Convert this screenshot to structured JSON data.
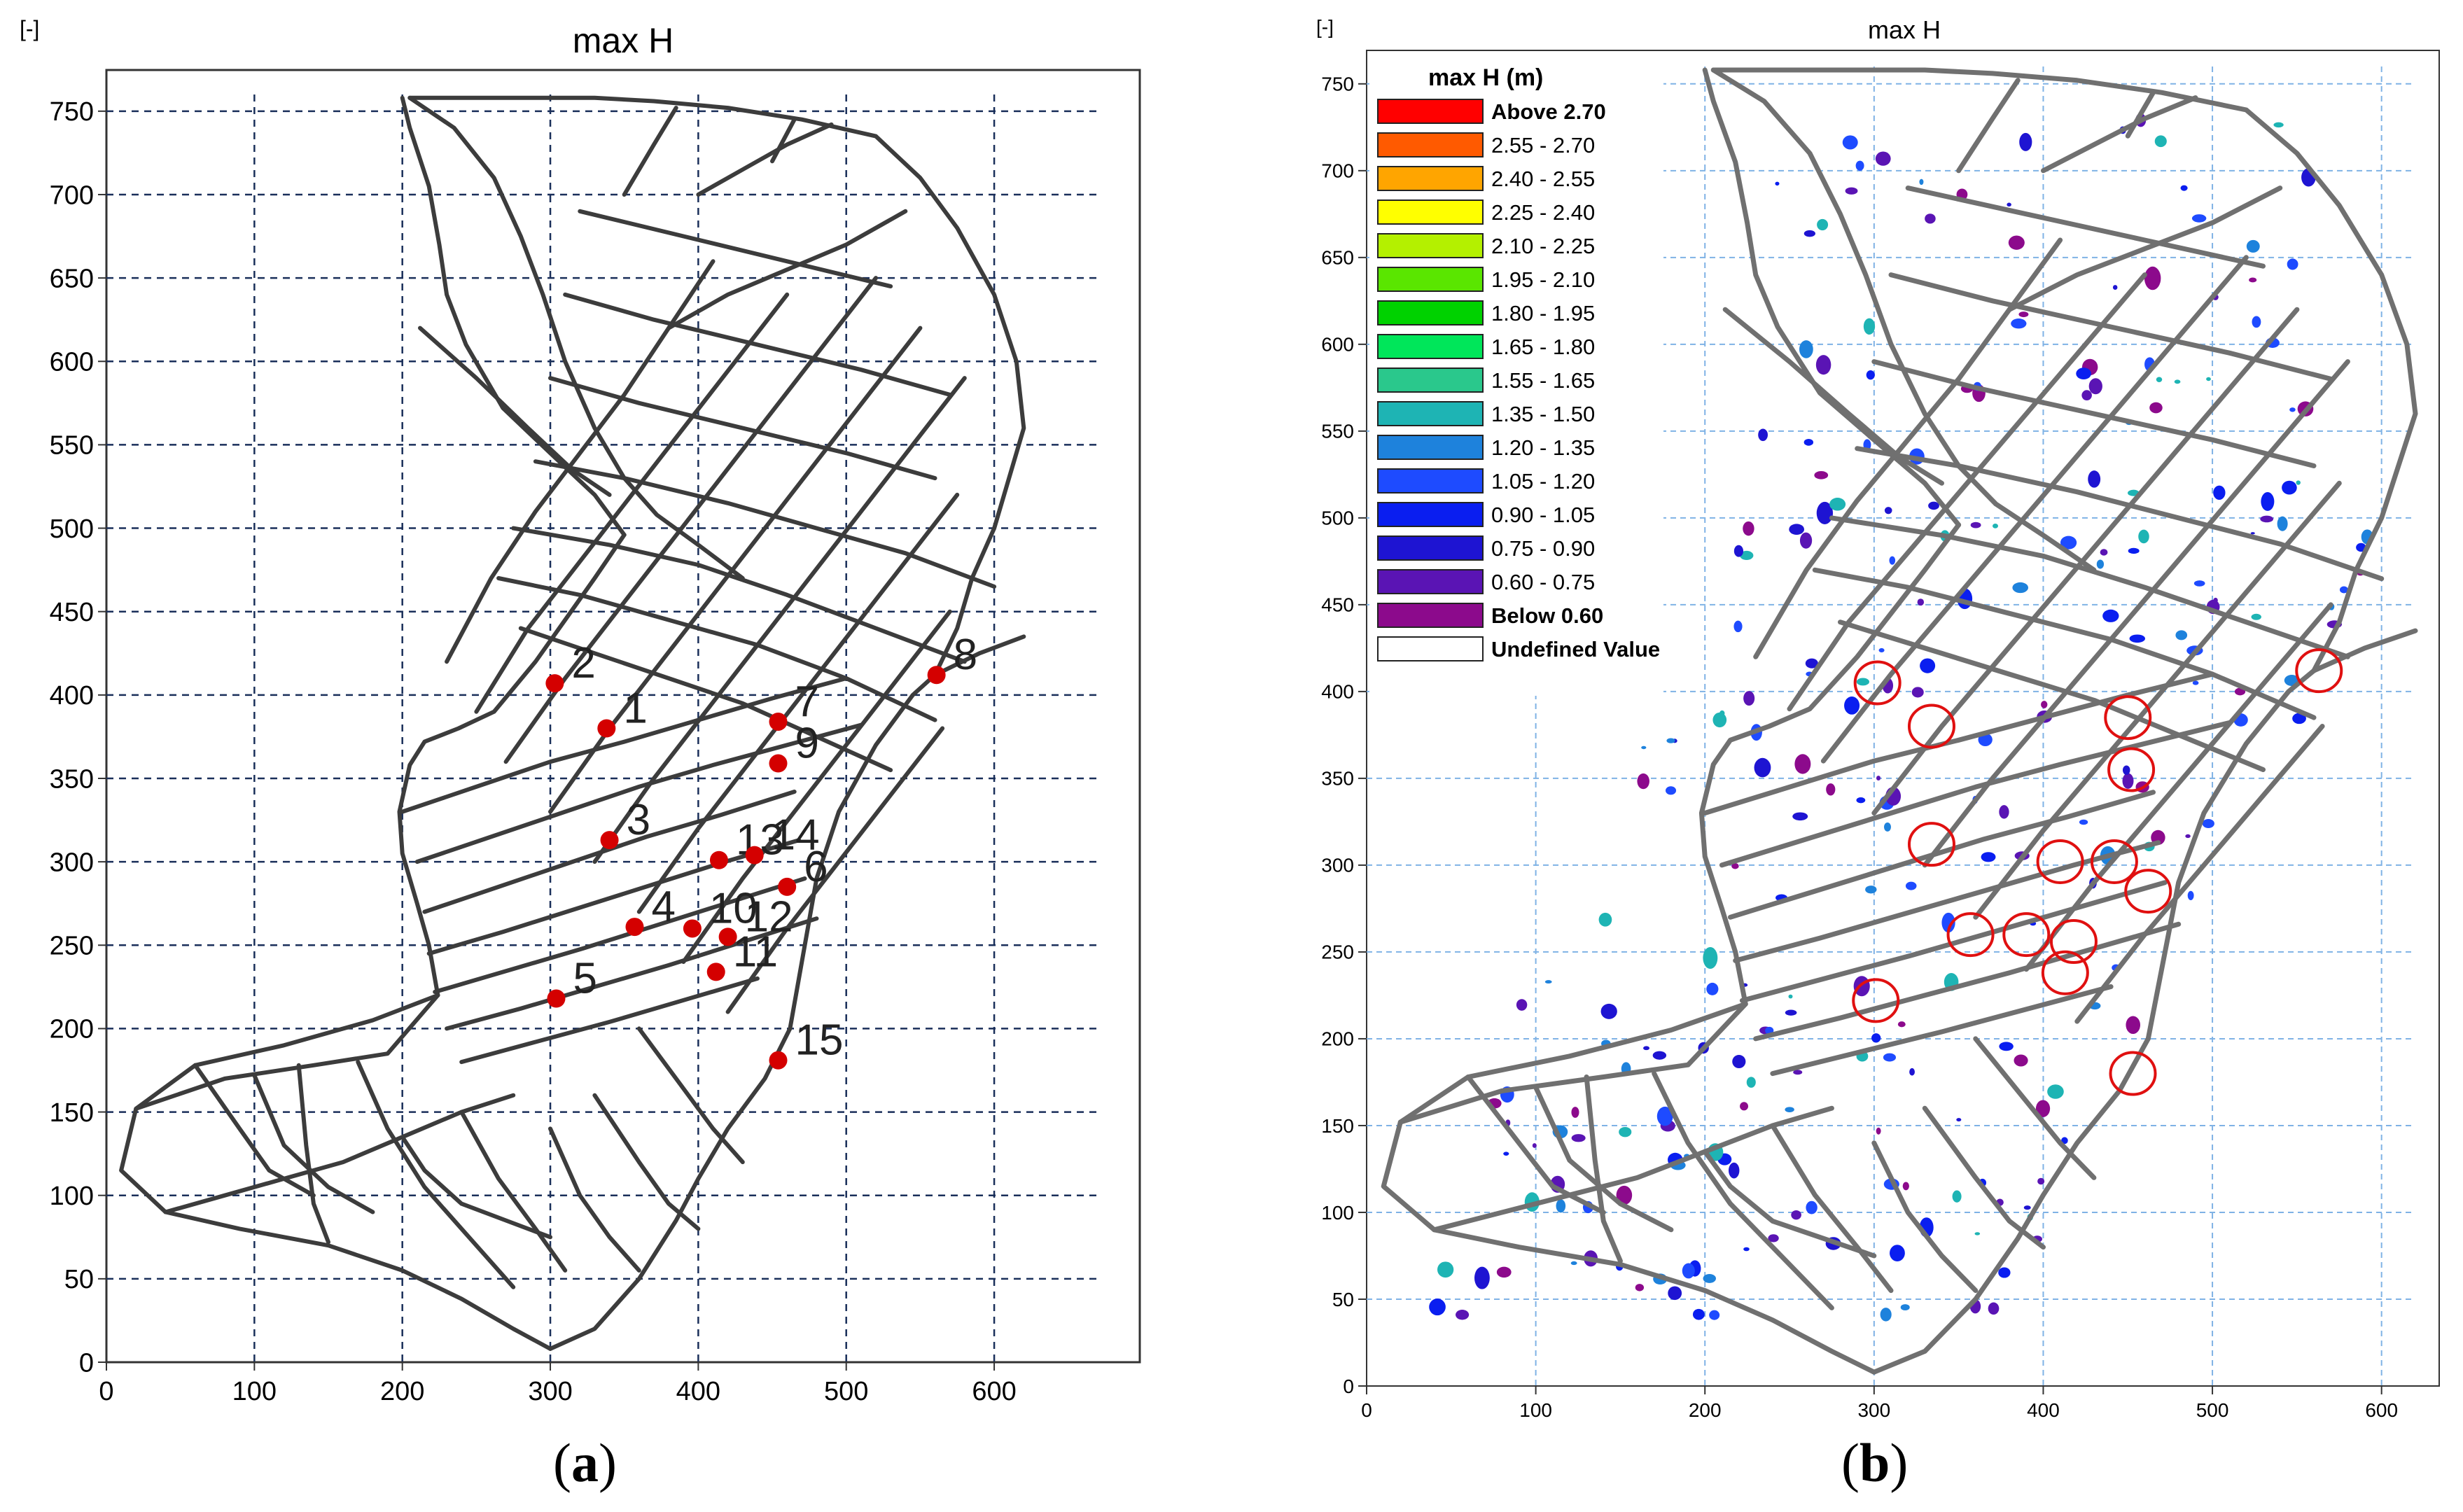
{
  "panel_a": {
    "unit_label": "[-]",
    "title": "max H",
    "caption_open": "(",
    "caption_letter": "a",
    "caption_close": ")",
    "x_ticks": [
      "0",
      "100",
      "200",
      "300",
      "400",
      "500",
      "600"
    ],
    "y_ticks": [
      "0",
      "50",
      "100",
      "150",
      "200",
      "250",
      "300",
      "350",
      "400",
      "450",
      "500",
      "550",
      "600",
      "650",
      "700",
      "750"
    ],
    "points": [
      {
        "label": "1",
        "x": 338,
        "y": 380
      },
      {
        "label": "2",
        "x": 303,
        "y": 407
      },
      {
        "label": "3",
        "x": 340,
        "y": 313
      },
      {
        "label": "4",
        "x": 357,
        "y": 261
      },
      {
        "label": "5",
        "x": 304,
        "y": 218
      },
      {
        "label": "6",
        "x": 460,
        "y": 285
      },
      {
        "label": "7",
        "x": 454,
        "y": 384
      },
      {
        "label": "8",
        "x": 561,
        "y": 412
      },
      {
        "label": "9",
        "x": 454,
        "y": 359
      },
      {
        "label": "10",
        "x": 396,
        "y": 260
      },
      {
        "label": "11",
        "x": 412,
        "y": 234
      },
      {
        "label": "12",
        "x": 420,
        "y": 255
      },
      {
        "label": "13",
        "x": 414,
        "y": 301
      },
      {
        "label": "14",
        "x": 438,
        "y": 304
      },
      {
        "label": "15",
        "x": 454,
        "y": 181
      }
    ],
    "point_color": "#d40000"
  },
  "panel_b": {
    "unit_label": "[-]",
    "title": "max H",
    "caption_open": "(",
    "caption_letter": "b",
    "caption_close": ")",
    "x_ticks": [
      "0",
      "100",
      "200",
      "300",
      "400",
      "500",
      "600"
    ],
    "y_ticks": [
      "0",
      "50",
      "100",
      "150",
      "200",
      "250",
      "300",
      "350",
      "400",
      "450",
      "500",
      "550",
      "600",
      "650",
      "700",
      "750"
    ],
    "legend_title": "max H (m)",
    "legend": [
      {
        "label": "Above 2.70",
        "color": "#ff0000"
      },
      {
        "label": "2.55 - 2.70",
        "color": "#ff5a00"
      },
      {
        "label": "2.40 - 2.55",
        "color": "#ffa500"
      },
      {
        "label": "2.25 - 2.40",
        "color": "#ffff00"
      },
      {
        "label": "2.10 - 2.25",
        "color": "#b4f000"
      },
      {
        "label": "1.95 - 2.10",
        "color": "#5ae600"
      },
      {
        "label": "1.80 - 1.95",
        "color": "#00d200"
      },
      {
        "label": "1.65 - 1.80",
        "color": "#00e65a"
      },
      {
        "label": "1.55 - 1.65",
        "color": "#2ac88c"
      },
      {
        "label": "1.35 - 1.50",
        "color": "#1eb4b4"
      },
      {
        "label": "1.20 - 1.35",
        "color": "#1e82dc"
      },
      {
        "label": "1.05 - 1.20",
        "color": "#1e4bff"
      },
      {
        "label": "0.90 - 1.05",
        "color": "#0a1ef0"
      },
      {
        "label": "0.75 - 0.90",
        "color": "#1e14d2"
      },
      {
        "label": "0.60 - 0.75",
        "color": "#5a14b4"
      },
      {
        "label": "Below 0.60",
        "color": "#8c0a8c"
      },
      {
        "label": "Undefined Value",
        "color": "#ffffff"
      }
    ],
    "circles": [
      {
        "x": 302,
        "y": 405
      },
      {
        "x": 334,
        "y": 380
      },
      {
        "x": 450,
        "y": 385
      },
      {
        "x": 452,
        "y": 355
      },
      {
        "x": 563,
        "y": 412
      },
      {
        "x": 334,
        "y": 312
      },
      {
        "x": 410,
        "y": 302
      },
      {
        "x": 442,
        "y": 302
      },
      {
        "x": 462,
        "y": 285
      },
      {
        "x": 357,
        "y": 260
      },
      {
        "x": 390,
        "y": 260
      },
      {
        "x": 418,
        "y": 256
      },
      {
        "x": 413,
        "y": 238
      },
      {
        "x": 301,
        "y": 222
      },
      {
        "x": 453,
        "y": 180
      }
    ],
    "circle_color": "#e01010"
  }
}
